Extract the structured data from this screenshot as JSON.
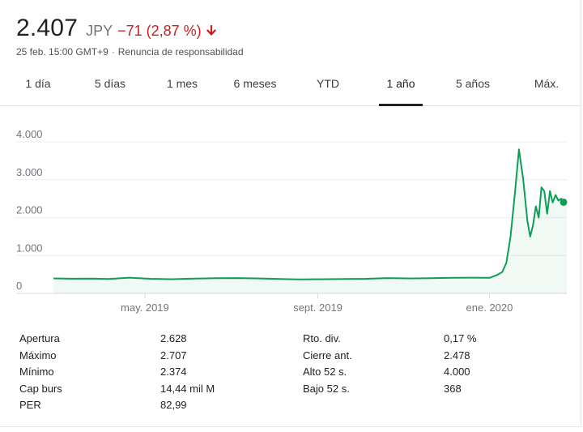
{
  "quote": {
    "price": "2.407",
    "currency": "JPY",
    "change": "−71 (2,87 %)",
    "date": "25 feb. 15:00 GMT+9",
    "separator": "·",
    "disclaimer": "Renuncia de responsabilidad",
    "change_color": "#c5221f",
    "direction_icon": "arrow-down-icon"
  },
  "tabs": [
    {
      "label": "1 día",
      "active": false
    },
    {
      "label": "5 días",
      "active": false
    },
    {
      "label": "1 mes",
      "active": false
    },
    {
      "label": "6 meses",
      "active": false
    },
    {
      "label": "YTD",
      "active": false
    },
    {
      "label": "1 año",
      "active": true
    },
    {
      "label": "5 años",
      "active": false
    },
    {
      "label": "Máx.",
      "active": false
    }
  ],
  "chart_data": {
    "type": "area",
    "title": "",
    "xlabel": "",
    "ylabel": "",
    "ylim": [
      0,
      4000
    ],
    "xlim": [
      "2019-02-25",
      "2020-02-25"
    ],
    "grid": true,
    "line_color": "#0f9d58",
    "y_ticks": [
      {
        "value": 0,
        "label": "0"
      },
      {
        "value": 1000,
        "label": "1.000"
      },
      {
        "value": 2000,
        "label": "2.000"
      },
      {
        "value": 3000,
        "label": "3.000"
      },
      {
        "value": 4000,
        "label": "4.000"
      }
    ],
    "x_ticks": [
      {
        "x": "2019-05-01",
        "label": "may. 2019"
      },
      {
        "x": "2019-09-01",
        "label": "sept. 2019"
      },
      {
        "x": "2020-01-01",
        "label": "ene. 2020"
      }
    ],
    "series": [
      {
        "x": [
          "2019-02-25",
          "2019-03-10",
          "2019-03-25",
          "2019-04-05",
          "2019-04-20",
          "2019-05-05",
          "2019-05-20",
          "2019-06-05",
          "2019-06-20",
          "2019-07-05",
          "2019-07-20",
          "2019-08-05",
          "2019-08-20",
          "2019-09-05",
          "2019-09-20",
          "2019-10-05",
          "2019-10-20",
          "2019-11-05",
          "2019-11-20",
          "2019-12-05",
          "2019-12-20",
          "2020-01-01",
          "2020-01-06",
          "2020-01-10",
          "2020-01-13",
          "2020-01-16",
          "2020-01-19",
          "2020-01-22",
          "2020-01-25",
          "2020-01-28",
          "2020-01-30",
          "2020-02-01",
          "2020-02-03",
          "2020-02-05",
          "2020-02-07",
          "2020-02-09",
          "2020-02-11",
          "2020-02-13",
          "2020-02-15",
          "2020-02-17",
          "2020-02-19",
          "2020-02-21",
          "2020-02-23",
          "2020-02-25"
        ],
        "values": [
          395,
          388,
          390,
          380,
          415,
          385,
          375,
          390,
          400,
          405,
          395,
          380,
          370,
          375,
          380,
          385,
          405,
          395,
          400,
          410,
          415,
          410,
          480,
          560,
          800,
          1500,
          2600,
          3800,
          3000,
          1900,
          1500,
          1800,
          2300,
          2000,
          2800,
          2700,
          2100,
          2700,
          2400,
          2600,
          2450,
          2500,
          2420,
          2407
        ]
      }
    ]
  },
  "stats": [
    {
      "label": "Apertura",
      "value": "2.628",
      "label2": "Rto. div.",
      "value2": "0,17 %"
    },
    {
      "label": "Máximo",
      "value": "2.707",
      "label2": "Cierre ant.",
      "value2": "2.478"
    },
    {
      "label": "Mínimo",
      "value": "2.374",
      "label2": "Alto 52 s.",
      "value2": "4.000"
    },
    {
      "label": "Cap burs",
      "value": "14,44 mil M",
      "label2": "Bajo 52 s.",
      "value2": "368"
    },
    {
      "label": "PER",
      "value": "82,99",
      "label2": "",
      "value2": ""
    }
  ]
}
